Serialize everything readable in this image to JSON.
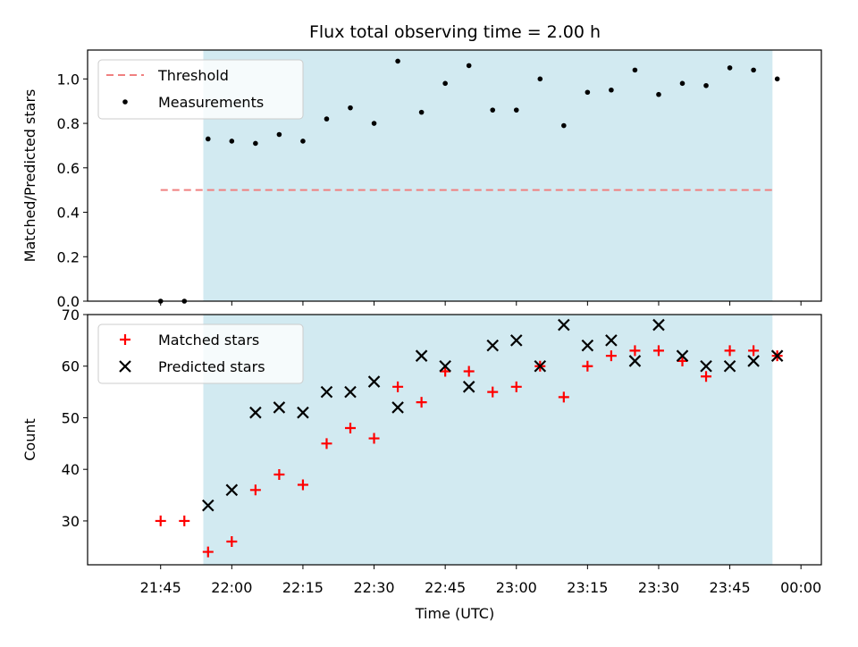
{
  "chart_data": {
    "title": "Flux total observing time = 2.00 h",
    "xlabel": "Time (UTC)",
    "x_ticks": [
      "21:45",
      "22:00",
      "22:15",
      "22:30",
      "22:45",
      "23:00",
      "23:15",
      "23:30",
      "23:45",
      "00:00"
    ],
    "shaded_span": {
      "start": "21:54",
      "end": "23:54",
      "color": "#add8e6"
    },
    "panels": [
      {
        "type": "scatter",
        "ylabel": "Matched/Predicted stars",
        "ylim": [
          0.0,
          1.13
        ],
        "y_ticks": [
          "0.0",
          "0.2",
          "0.4",
          "0.6",
          "0.8",
          "1.0"
        ],
        "legend_position": "top-left",
        "series": [
          {
            "name": "Threshold",
            "kind": "line",
            "style": "dashed",
            "color": "#f08080",
            "x": [
              "21:45",
              "23:54"
            ],
            "y": [
              0.5,
              0.5
            ]
          },
          {
            "name": "Measurements",
            "kind": "point",
            "color": "#000000",
            "x": [
              "21:45",
              "21:50",
              "21:55",
              "22:00",
              "22:05",
              "22:10",
              "22:15",
              "22:20",
              "22:25",
              "22:30",
              "22:35",
              "22:40",
              "22:45",
              "22:50",
              "22:55",
              "23:00",
              "23:05",
              "23:10",
              "23:15",
              "23:20",
              "23:25",
              "23:30",
              "23:35",
              "23:40",
              "23:45",
              "23:50",
              "23:55"
            ],
            "y": [
              0.0,
              0.0,
              0.73,
              0.72,
              0.71,
              0.75,
              0.72,
              0.82,
              0.87,
              0.8,
              1.08,
              0.85,
              0.98,
              1.06,
              0.86,
              0.86,
              1.0,
              0.79,
              0.94,
              0.95,
              1.04,
              0.93,
              0.98,
              0.97,
              1.05,
              1.04,
              1.0
            ]
          }
        ]
      },
      {
        "type": "scatter",
        "ylabel": "Count",
        "ylim": [
          21.5,
          70
        ],
        "y_ticks": [
          "30",
          "40",
          "50",
          "60",
          "70"
        ],
        "legend_position": "top-left",
        "series": [
          {
            "name": "Matched stars",
            "kind": "plus",
            "color": "#ff0000",
            "x": [
              "21:45",
              "21:50",
              "21:55",
              "22:00",
              "22:05",
              "22:10",
              "22:15",
              "22:20",
              "22:25",
              "22:30",
              "22:35",
              "22:40",
              "22:45",
              "22:50",
              "22:55",
              "23:00",
              "23:05",
              "23:10",
              "23:15",
              "23:20",
              "23:25",
              "23:30",
              "23:35",
              "23:40",
              "23:45",
              "23:50",
              "23:55"
            ],
            "y": [
              30,
              30,
              24,
              26,
              36,
              39,
              37,
              45,
              48,
              46,
              56,
              53,
              59,
              59,
              55,
              56,
              60,
              54,
              60,
              62,
              63,
              63,
              61,
              58,
              63,
              63,
              62
            ]
          },
          {
            "name": "Predicted stars",
            "kind": "cross",
            "color": "#000000",
            "x": [
              "21:55",
              "22:00",
              "22:05",
              "22:10",
              "22:15",
              "22:20",
              "22:25",
              "22:30",
              "22:35",
              "22:40",
              "22:45",
              "22:50",
              "22:55",
              "23:00",
              "23:05",
              "23:10",
              "23:15",
              "23:20",
              "23:25",
              "23:30",
              "23:35",
              "23:40",
              "23:45",
              "23:50",
              "23:55"
            ],
            "y": [
              33,
              36,
              51,
              52,
              51,
              55,
              55,
              57,
              52,
              62,
              60,
              56,
              64,
              65,
              60,
              68,
              64,
              65,
              61,
              68,
              62,
              60,
              60,
              61,
              62
            ]
          }
        ]
      }
    ]
  }
}
